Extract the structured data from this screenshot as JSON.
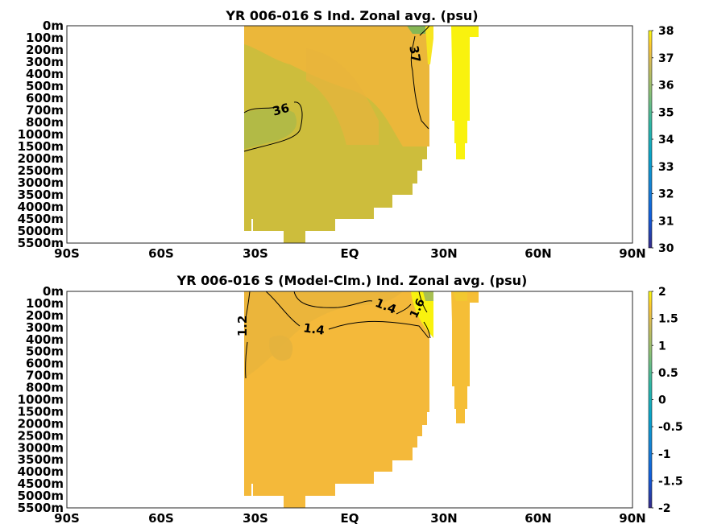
{
  "chart_data": [
    {
      "type": "heatmap",
      "title": "YR 006-016 S Ind. Zonal avg. (psu)",
      "x_tick_labels": [
        "90S",
        "60S",
        "30S",
        "EQ",
        "30N",
        "60N",
        "90N"
      ],
      "x_tick_values": [
        -90,
        -60,
        -30,
        0,
        30,
        60,
        90
      ],
      "xlim": [
        -90,
        90
      ],
      "y_tick_labels": [
        "0m",
        "100m",
        "200m",
        "300m",
        "400m",
        "500m",
        "600m",
        "700m",
        "800m",
        "1000m",
        "1500m",
        "2000m",
        "2500m",
        "3000m",
        "3500m",
        "4000m",
        "4500m",
        "5000m",
        "5500m"
      ],
      "colorbar": {
        "min": 30,
        "max": 38,
        "ticks": [
          "38",
          "37",
          "36",
          "35",
          "34",
          "33",
          "32",
          "31",
          "30"
        ]
      },
      "contour_labels": [
        "36",
        "37"
      ],
      "grid": false
    },
    {
      "type": "heatmap",
      "title": "YR 006-016 S (Model-Clm.) Ind. Zonal avg. (psu)",
      "x_tick_labels": [
        "90S",
        "60S",
        "30S",
        "EQ",
        "30N",
        "60N",
        "90N"
      ],
      "x_tick_values": [
        -90,
        -60,
        -30,
        0,
        30,
        60,
        90
      ],
      "xlim": [
        -90,
        90
      ],
      "y_tick_labels": [
        "0m",
        "100m",
        "200m",
        "300m",
        "400m",
        "500m",
        "600m",
        "700m",
        "800m",
        "1000m",
        "1500m",
        "2000m",
        "2500m",
        "3000m",
        "3500m",
        "4000m",
        "4500m",
        "5000m",
        "5500m"
      ],
      "colorbar": {
        "min": -2,
        "max": 2,
        "ticks": [
          "2",
          "1.5",
          "1",
          "0.5",
          "0",
          "-0.5",
          "-1",
          "-1.5",
          "-2"
        ]
      },
      "contour_labels": [
        "1.2",
        "1.4",
        "1.4",
        "1.6"
      ],
      "grid": false
    }
  ]
}
